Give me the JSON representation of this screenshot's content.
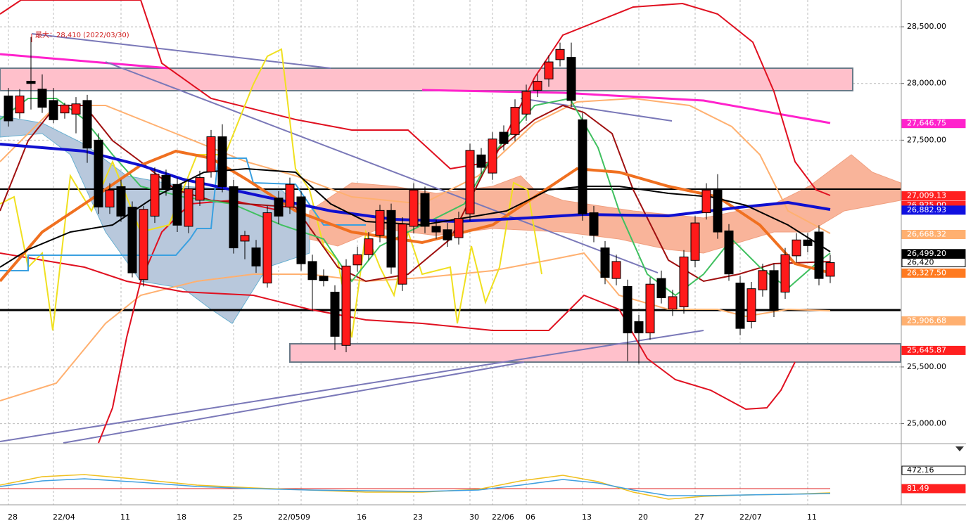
{
  "chart_data": {
    "type": "candlestick",
    "categories": [
      "28",
      null,
      null,
      null,
      "22/04",
      null,
      null,
      null,
      null,
      null,
      "11",
      null,
      null,
      null,
      null,
      "18",
      null,
      null,
      null,
      null,
      "25",
      null,
      null,
      null,
      "22/05",
      null,
      "09",
      null,
      null,
      null,
      null,
      "16",
      null,
      null,
      null,
      null,
      "23",
      null,
      null,
      null,
      null,
      "30",
      null,
      "22/06",
      null,
      null,
      "06",
      null,
      null,
      null,
      null,
      "13",
      null,
      null,
      null,
      null,
      "20",
      null,
      null,
      null,
      null,
      "27",
      null,
      null,
      null,
      "22/07",
      null,
      null,
      null,
      null,
      null,
      "11",
      null,
      null
    ],
    "open": [
      27890,
      27740,
      28020,
      27950,
      27850,
      27740,
      27730,
      27850,
      27500,
      26910,
      27090,
      26910,
      26270,
      26830,
      27190,
      27110,
      26740,
      26970,
      27220,
      27530,
      27090,
      26610,
      26550,
      26240,
      26990,
      26910,
      27000,
      26430,
      26300,
      26160,
      25690,
      26400,
      26490,
      26660,
      26880,
      26230,
      26740,
      27030,
      26740,
      26710,
      26640,
      26850,
      27370,
      27210,
      27570,
      27550,
      27730,
      27940,
      28040,
      28210,
      28230,
      27680,
      26860,
      26550,
      26280,
      26210,
      25900,
      25800,
      26280,
      26010,
      26030,
      26440,
      26860,
      27060,
      26700,
      26240,
      25900,
      26180,
      26350,
      26160,
      26480,
      26620,
      26690,
      26300
    ],
    "high": [
      27960,
      27950,
      28410,
      28080,
      27960,
      27830,
      27880,
      27900,
      27560,
      27120,
      27150,
      26960,
      26920,
      27260,
      27240,
      27170,
      27140,
      27230,
      27590,
      27640,
      27150,
      26700,
      26620,
      26920,
      27050,
      27170,
      27050,
      26490,
      26360,
      26220,
      26450,
      26560,
      26690,
      26930,
      26940,
      26820,
      27120,
      27090,
      26800,
      26770,
      26870,
      27470,
      27430,
      27570,
      27630,
      27860,
      27990,
      28080,
      28250,
      28360,
      28360,
      27740,
      26920,
      26610,
      26490,
      26270,
      25960,
      26290,
      26350,
      26180,
      26530,
      26830,
      27120,
      27200,
      26760,
      26300,
      26250,
      26410,
      26410,
      26550,
      26680,
      26680,
      26750,
      26490
    ],
    "low": [
      27620,
      27690,
      27770,
      27740,
      27650,
      27690,
      27560,
      27300,
      26850,
      26850,
      26780,
      26290,
      26210,
      26770,
      27010,
      26690,
      26680,
      26920,
      27170,
      27040,
      26500,
      26450,
      26330,
      26200,
      26760,
      26850,
      26350,
      25990,
      26210,
      25650,
      25630,
      26340,
      26440,
      26600,
      26320,
      26170,
      26680,
      26680,
      26630,
      26560,
      26580,
      26790,
      27200,
      27150,
      27410,
      27490,
      27670,
      27880,
      27970,
      28150,
      27790,
      26790,
      26600,
      26230,
      26220,
      25550,
      25530,
      25740,
      26060,
      25950,
      25970,
      26380,
      26800,
      26630,
      26260,
      25780,
      25840,
      26120,
      25940,
      26100,
      26420,
      26510,
      26220,
      26240
    ],
    "close": [
      27670,
      27890,
      28000,
      27790,
      27680,
      27810,
      27820,
      27430,
      26910,
      27060,
      26830,
      26330,
      26890,
      27200,
      27070,
      26750,
      27070,
      27170,
      27530,
      27090,
      26550,
      26660,
      26390,
      26860,
      26830,
      27110,
      26410,
      26270,
      26260,
      25770,
      26390,
      26490,
      26630,
      26880,
      26380,
      26760,
      27060,
      26740,
      26690,
      26620,
      26810,
      27410,
      27260,
      27510,
      27470,
      27790,
      27930,
      28020,
      28190,
      28300,
      27850,
      26850,
      26660,
      26290,
      26430,
      25800,
      25800,
      26230,
      26110,
      26120,
      26470,
      26770,
      27060,
      26690,
      26320,
      25840,
      26190,
      26350,
      26000,
      26490,
      26620,
      26570,
      26280,
      26420
    ],
    "up_color": "#ff1a1a",
    "down_color": "#000000",
    "ylim": [
      24830,
      28736
    ],
    "yticks": [
      {
        "value": 25000,
        "label": "25,000.00"
      },
      {
        "value": 25500,
        "label": "25,500.00"
      },
      {
        "value": 27500,
        "label": "27,500.00"
      },
      {
        "value": 28000,
        "label": "28,000.00"
      },
      {
        "value": 28500,
        "label": "28,500.00"
      }
    ],
    "grid": true,
    "price_tags": [
      {
        "value": 27646.75,
        "label": "27,646.75",
        "color": "#ff22cc",
        "text_color": "#ffffff"
      },
      {
        "value": 27009.13,
        "label": "27,009.13",
        "color": "#ff2020",
        "text_color": "#ffffff"
      },
      {
        "value": 26925.0,
        "label": "26,925.00",
        "color": "#ff2020",
        "text_color": "#ffffff"
      },
      {
        "value": 26882.93,
        "label": "26,882.93",
        "color": "#1010e0",
        "text_color": "#ffffff"
      },
      {
        "value": 26668.32,
        "label": "26,668.32",
        "color": "#ffb070",
        "text_color": "#ffffff"
      },
      {
        "value": 26499.2,
        "label": "26,499.20",
        "color": "#000000",
        "text_color": "#ffffff"
      },
      {
        "value": 26420,
        "label": "26,420",
        "color": "#ffffff",
        "text_color": "#000000"
      },
      {
        "value": 26327.5,
        "label": "26,327.50",
        "color": "#ff7a20",
        "text_color": "#ffffff"
      },
      {
        "value": 25906.68,
        "label": "25,906.68",
        "color": "#ffb070",
        "text_color": "#ffffff"
      },
      {
        "value": 25645.87,
        "label": "25,645.87",
        "color": "#ff2020",
        "text_color": "#ffffff"
      }
    ],
    "annotation": "最大：28,410 (2022/03/30)",
    "lower_panel": {
      "tags": [
        {
          "label": "472.16",
          "color": "#ffffff",
          "text_color": "#000000"
        },
        {
          "label": "81.49",
          "color": "#ff2020",
          "text_color": "#ffffff"
        }
      ]
    }
  }
}
